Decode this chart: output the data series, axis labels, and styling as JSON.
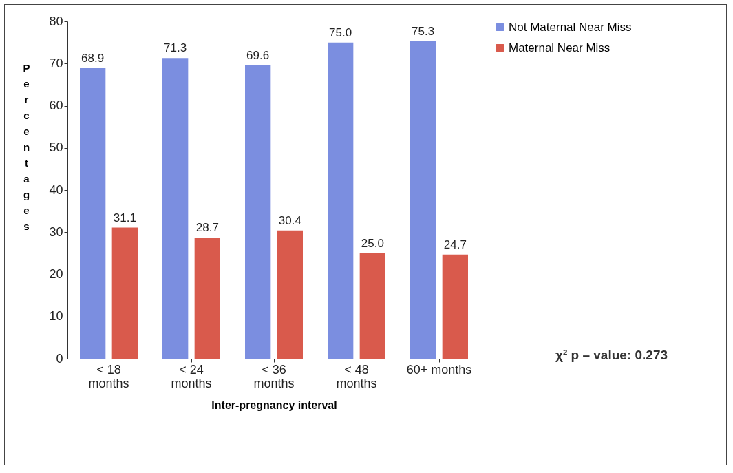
{
  "chart_data": {
    "type": "bar",
    "xlabel": "Inter-pregnancy interval",
    "ylabel": "Percentages",
    "categories": [
      "< 18 months",
      "< 24 months",
      "< 36 months",
      "< 48 months",
      "60+ months"
    ],
    "series": [
      {
        "name": "Not Maternal Near Miss",
        "color": "#7b8ee0",
        "values": [
          68.9,
          71.3,
          69.6,
          75.0,
          75.3
        ],
        "value_labels": [
          "68.9",
          "71.3",
          "69.6",
          "75.0",
          "75.3"
        ]
      },
      {
        "name": "Maternal Near Miss",
        "color": "#d95a4c",
        "values": [
          31.1,
          28.7,
          30.4,
          25.0,
          24.7
        ],
        "value_labels": [
          "31.1",
          "28.7",
          "30.4",
          "25.0",
          "24.7"
        ]
      }
    ],
    "ylim": [
      0,
      80
    ],
    "yticks": [
      0,
      10,
      20,
      30,
      40,
      50,
      60,
      70,
      80
    ],
    "grid": false,
    "legend": "right",
    "annotations": [
      "χ² p – value: 0.273"
    ]
  }
}
